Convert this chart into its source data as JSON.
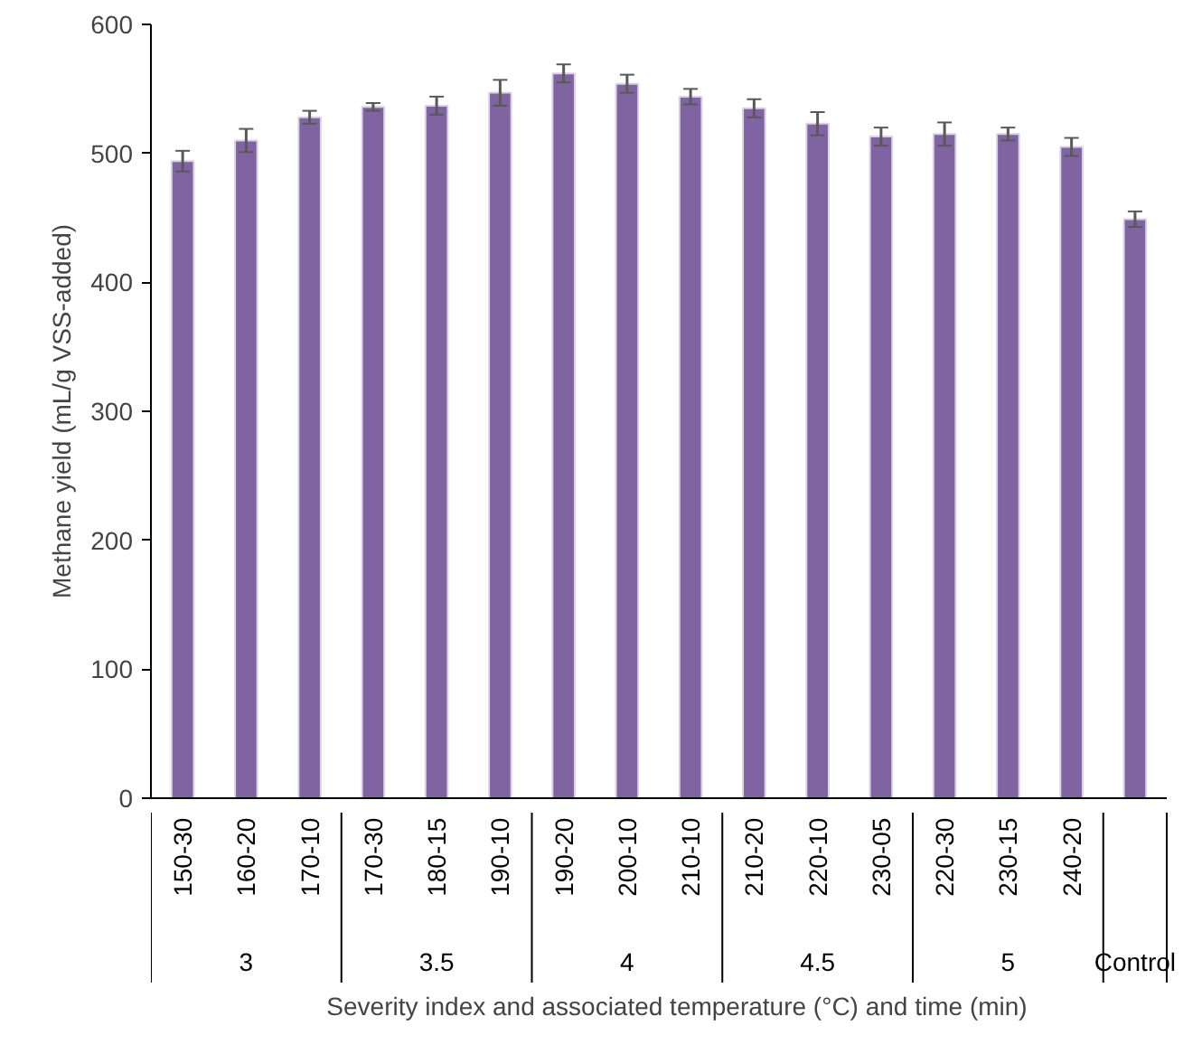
{
  "chart_data": {
    "type": "bar",
    "xlabel": "Severity index and associated temperature (°C) and time (min)",
    "ylabel": "Methane yield (mL/g VSS-added)",
    "categories": [
      "150-30",
      "160-20",
      "170-10",
      "170-30",
      "180-15",
      "190-10",
      "190-20",
      "200-10",
      "210-10",
      "210-20",
      "220-10",
      "230-05",
      "220-30",
      "230-15",
      "240-20",
      null
    ],
    "values": [
      494,
      510,
      528,
      536,
      537,
      547,
      562,
      554,
      544,
      535,
      523,
      513,
      515,
      515,
      505,
      449
    ],
    "errors": [
      8,
      9,
      5,
      3,
      7,
      10,
      7,
      7,
      6,
      7,
      9,
      7,
      9,
      5,
      7,
      6
    ],
    "color": "#8064a2",
    "ylim": [
      0,
      600
    ],
    "yticks": [
      0,
      100,
      200,
      300,
      400,
      500,
      600
    ],
    "grid": false,
    "annotations": [
      "3",
      "3.5",
      "4",
      "4.5",
      "5",
      "Control"
    ]
  }
}
